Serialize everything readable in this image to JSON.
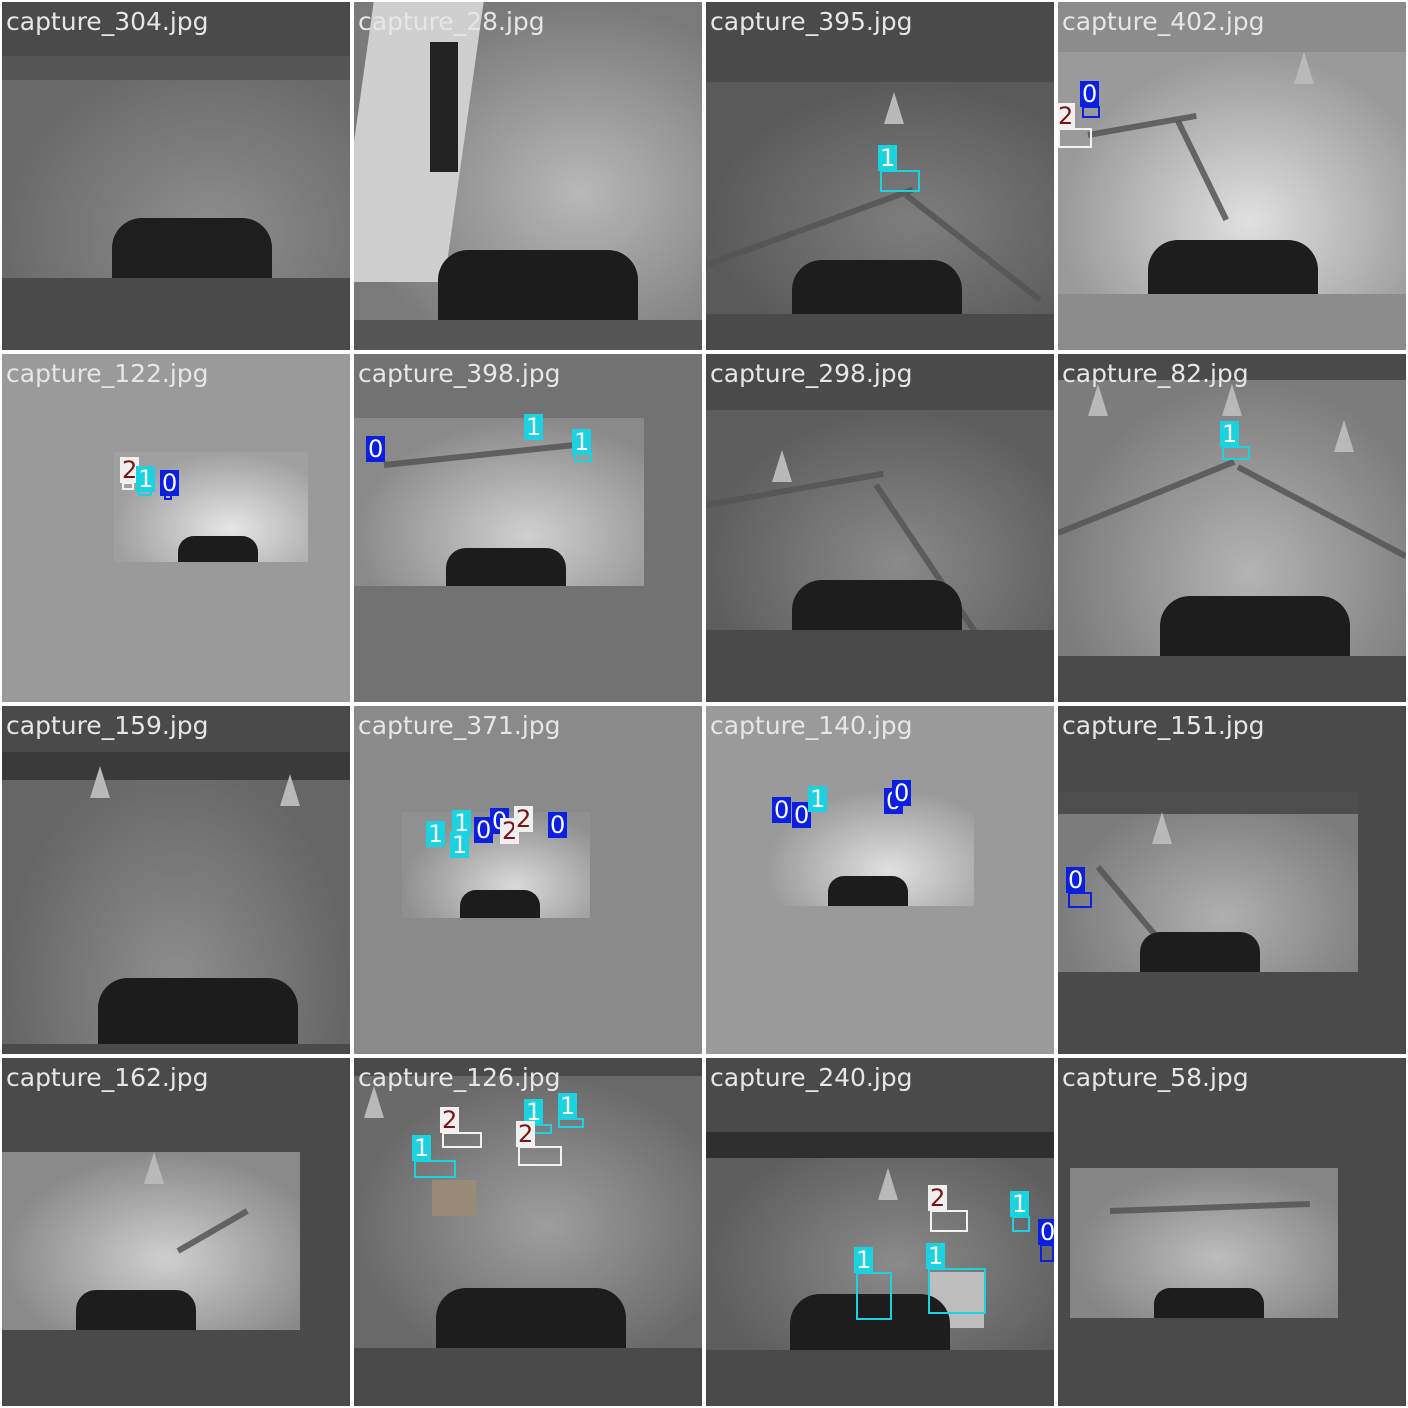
{
  "grid": [
    {
      "filename": "capture_304.jpg"
    },
    {
      "filename": "capture_28.jpg"
    },
    {
      "filename": "capture_395.jpg",
      "labels": [
        "1"
      ]
    },
    {
      "filename": "capture_402.jpg",
      "labels": [
        "0",
        "2"
      ]
    },
    {
      "filename": "capture_122.jpg",
      "labels": [
        "2",
        "1",
        "0"
      ]
    },
    {
      "filename": "capture_398.jpg",
      "labels": [
        "0",
        "1",
        "1"
      ]
    },
    {
      "filename": "capture_298.jpg"
    },
    {
      "filename": "capture_82.jpg",
      "labels": [
        "1"
      ]
    },
    {
      "filename": "capture_159.jpg"
    },
    {
      "filename": "capture_371.jpg",
      "labels": [
        "1",
        "1",
        "1",
        "0",
        "0",
        "2",
        "2",
        "0"
      ]
    },
    {
      "filename": "capture_140.jpg",
      "labels": [
        "0",
        "0",
        "1",
        "0",
        "0"
      ]
    },
    {
      "filename": "capture_151.jpg",
      "labels": [
        "0"
      ]
    },
    {
      "filename": "capture_162.jpg"
    },
    {
      "filename": "capture_126.jpg",
      "labels": [
        "2",
        "1",
        "1",
        "1",
        "2"
      ]
    },
    {
      "filename": "capture_240.jpg",
      "labels": [
        "2",
        "1",
        "0",
        "1",
        "1"
      ]
    },
    {
      "filename": "capture_58.jpg"
    }
  ],
  "class_colors": {
    "0": "#0a1fe0",
    "1": "#1ad2e0",
    "2": "#f0f0f0"
  }
}
